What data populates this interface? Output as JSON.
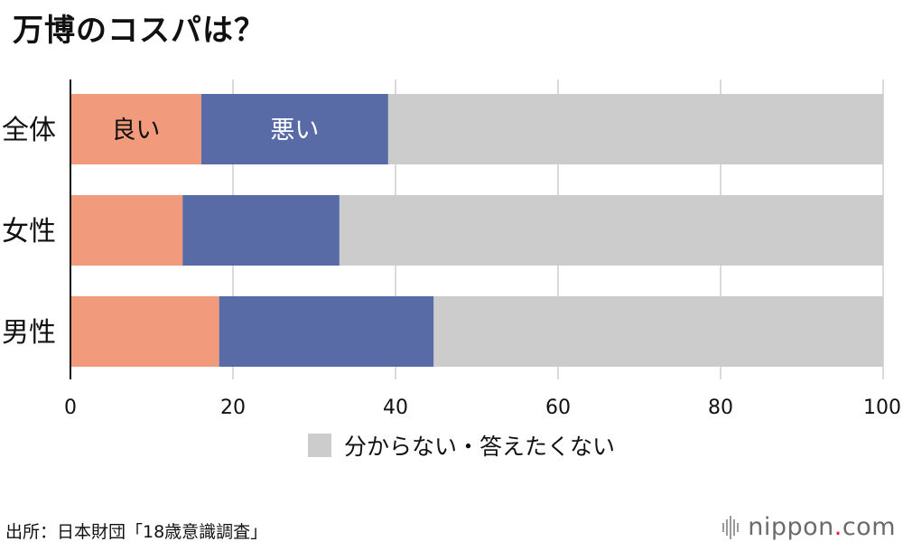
{
  "title": "万博のコスパは？",
  "chart_data": {
    "type": "bar",
    "orientation": "horizontal",
    "stacked": true,
    "categories": [
      "全体",
      "女性",
      "男性"
    ],
    "series": [
      {
        "name": "良い",
        "values": [
          16.1,
          13.8,
          18.3
        ],
        "color": "#f29b7c"
      },
      {
        "name": "悪い",
        "values": [
          23.0,
          19.3,
          26.4
        ],
        "color": "#586ba6"
      },
      {
        "name": "分からない・答えたくない",
        "values": [
          60.9,
          66.9,
          55.3
        ],
        "color": "#cccccc"
      }
    ],
    "xlim": [
      0,
      100
    ],
    "xticks": [
      "0",
      "20",
      "40",
      "60",
      "80",
      "100"
    ],
    "xunit": "(%)",
    "grid": true,
    "segment_labels": [
      {
        "category": "全体",
        "series": "良い",
        "text": "良い"
      },
      {
        "category": "全体",
        "series": "悪い",
        "text": "悪い"
      }
    ],
    "legend": {
      "position": "bottom",
      "entries": [
        "分からない・答えたくない"
      ]
    }
  },
  "source": "出所：日本財団「18歳意識調査」",
  "brand": {
    "name": "nippon",
    "dot": ".",
    "suffix": "com"
  }
}
